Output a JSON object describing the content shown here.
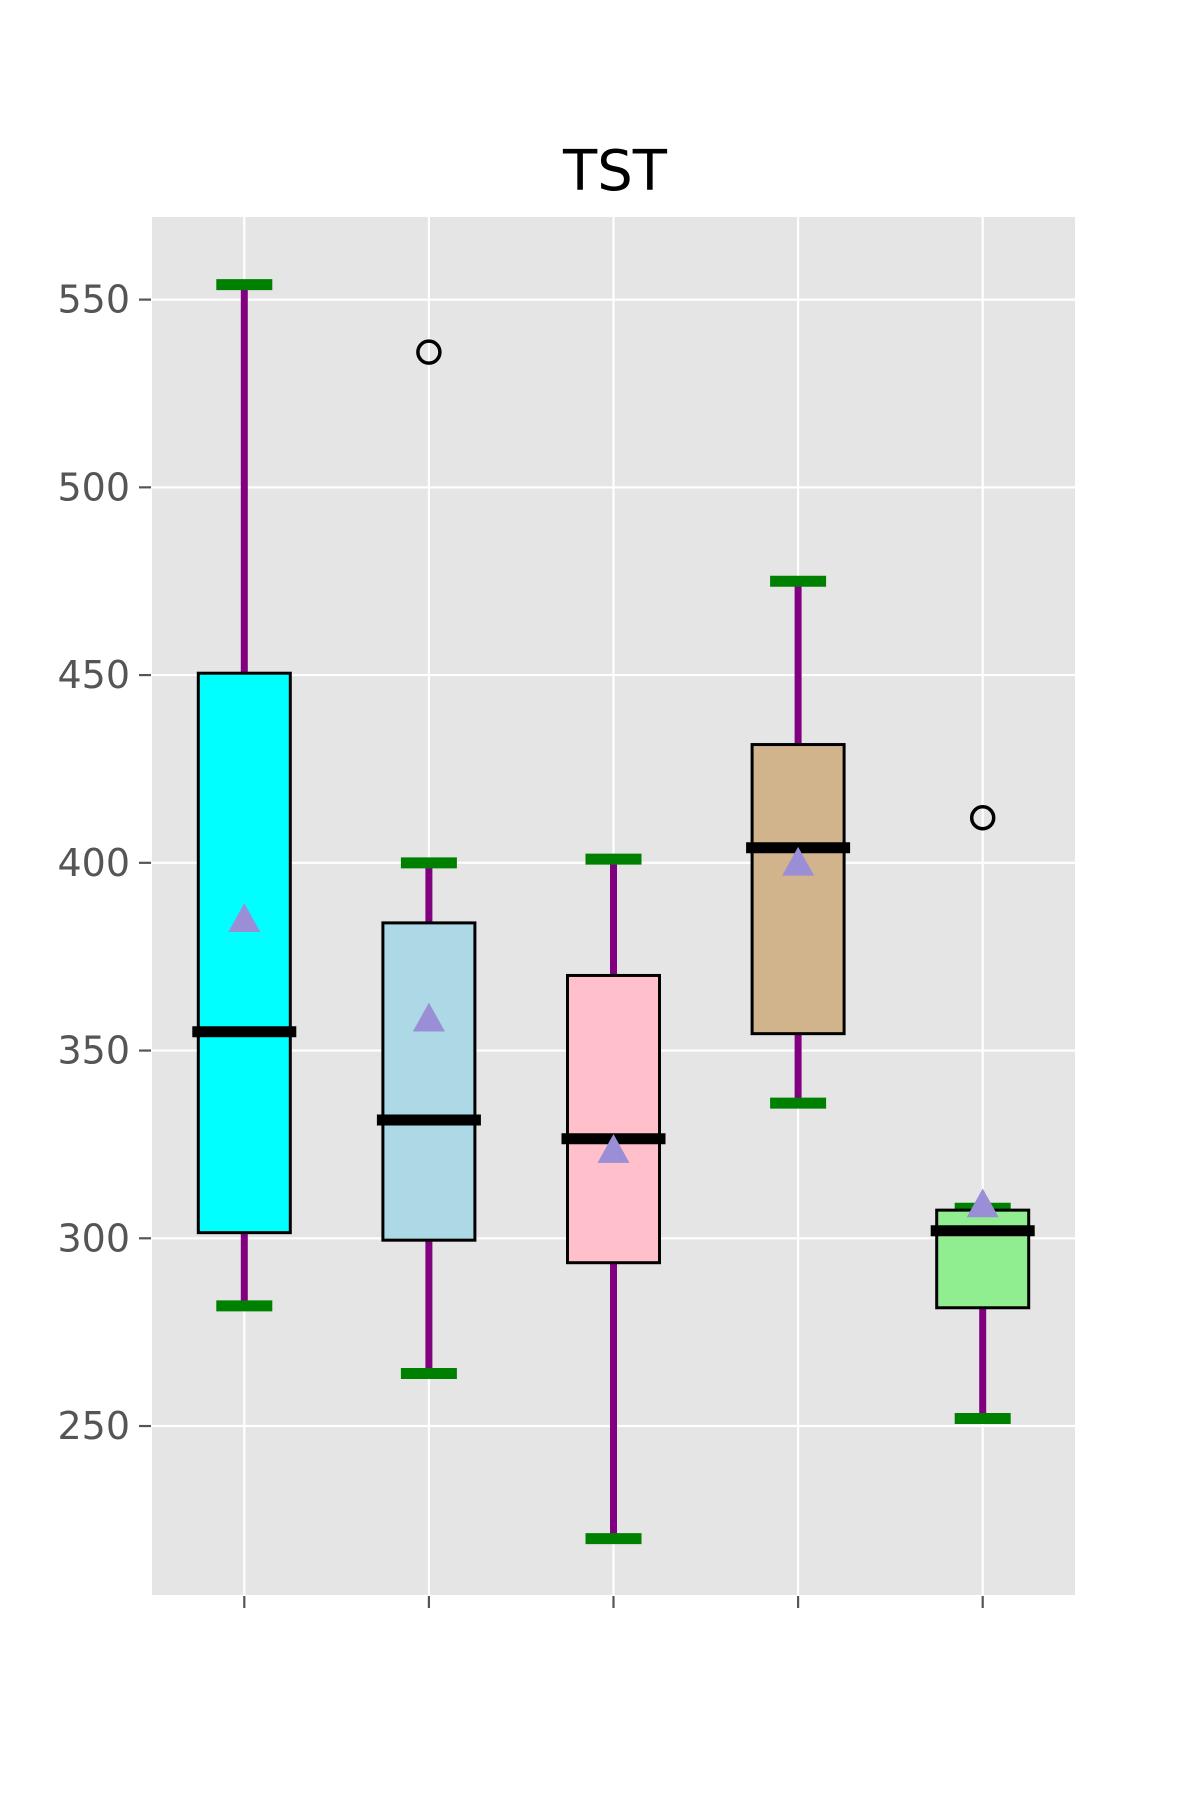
{
  "chart_data": {
    "type": "box",
    "title": "TST",
    "xlabel": "",
    "ylabel": "",
    "ylim": [
      205,
      572
    ],
    "yticks": [
      250,
      300,
      350,
      400,
      450,
      500,
      550
    ],
    "ytick_labels": [
      "250",
      "300",
      "350",
      "400",
      "450",
      "500",
      "550"
    ],
    "categories": [
      "",
      "",
      "",
      "",
      ""
    ],
    "grid": true,
    "background": "#e5e5e5",
    "colors": {
      "whisker": "#800080",
      "cap": "#008000",
      "median": "#000000",
      "mean_marker": "#9a8fd6",
      "grid": "#ffffff"
    },
    "boxes": [
      {
        "fill": "#00ffff",
        "whisker_low": 282,
        "q1": 301.5,
        "median": 355,
        "q3": 450.5,
        "whisker_high": 554,
        "mean": 385,
        "outliers": []
      },
      {
        "fill": "#add8e6",
        "whisker_low": 264,
        "q1": 299.5,
        "median": 331.5,
        "q3": 384,
        "whisker_high": 400,
        "mean": 358.5,
        "outliers": [
          536
        ]
      },
      {
        "fill": "#ffc0cb",
        "whisker_low": 220,
        "q1": 293.5,
        "median": 326.5,
        "q3": 370,
        "whisker_high": 401,
        "mean": 323.5,
        "outliers": []
      },
      {
        "fill": "#d2b48c",
        "whisker_low": 336,
        "q1": 354.5,
        "median": 404,
        "q3": 431.5,
        "whisker_high": 475,
        "mean": 400,
        "outliers": []
      },
      {
        "fill": "#90ee90",
        "whisker_low": 252,
        "q1": 281.5,
        "median": 302,
        "q3": 307.5,
        "whisker_high": 308,
        "mean": 309,
        "outliers": [
          412
        ]
      }
    ]
  }
}
